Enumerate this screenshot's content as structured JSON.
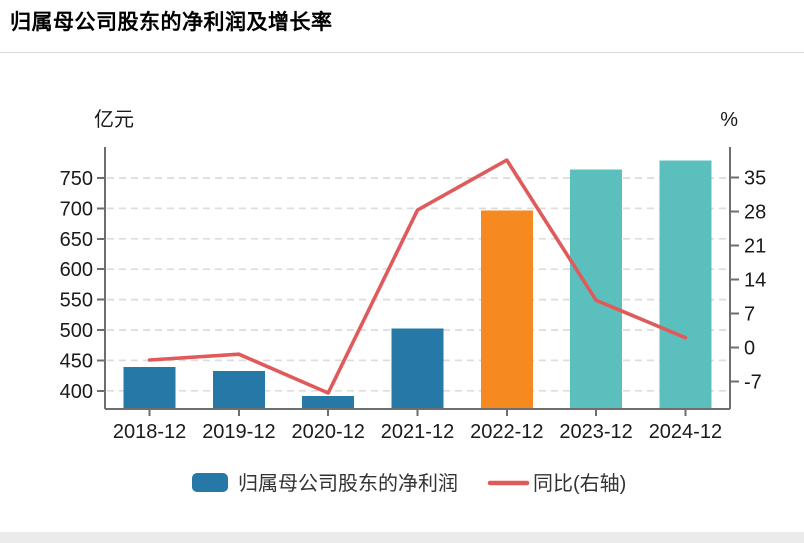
{
  "page": {
    "title": "归属母公司股东的净利润及增长率"
  },
  "chart_data": {
    "type": "bar+line",
    "categories": [
      "2018-12",
      "2019-12",
      "2020-12",
      "2021-12",
      "2022-12",
      "2023-12",
      "2024-12"
    ],
    "series": [
      {
        "name": "归属母公司股东的净利润",
        "type": "bar",
        "axis": "left",
        "values": [
          438.7,
          432.5,
          391.7,
          502.7,
          696.3,
          764.0,
          779.0
        ]
      },
      {
        "name": "同比(右轴)",
        "type": "line",
        "axis": "right",
        "values": [
          -2.6,
          -1.4,
          -9.4,
          28.3,
          38.6,
          9.7,
          2.0
        ]
      }
    ],
    "bar_colors": [
      "#2678a6",
      "#2678a6",
      "#2678a6",
      "#2678a6",
      "#f68a20",
      "#5bc0bd",
      "#5bc0bd"
    ],
    "left_axis": {
      "label": "亿元",
      "ticks": [
        400,
        450,
        500,
        550,
        600,
        650,
        700,
        750
      ],
      "range": [
        370,
        801
      ]
    },
    "right_axis": {
      "label": "%",
      "ticks": [
        -7,
        0,
        7,
        14,
        21,
        28,
        35
      ],
      "range": [
        -12.7,
        41.3
      ]
    },
    "grid": "dashed-horizontal",
    "legend_position": "bottom"
  },
  "colors": {
    "bar_default": "#2678a6",
    "bar_highlight": "#f68a20",
    "bar_forecast": "#5bc0bd",
    "line": "#e05a5c",
    "grid": "#dcdcdc",
    "axis": "#6e6e6e",
    "tick_label": "#1a1a1a",
    "legend_text": "#333333",
    "divider": "#d9d9d9",
    "footer_bg": "#ebebeb"
  }
}
